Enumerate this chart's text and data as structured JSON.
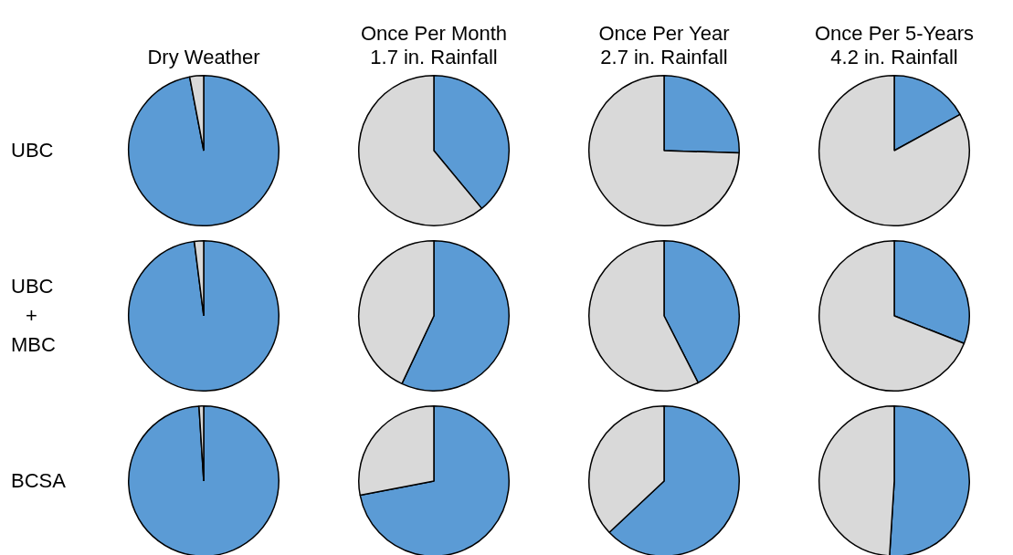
{
  "chart_data": [
    {
      "type": "pie",
      "title": "Dry Weather",
      "ylabel": "UBC",
      "categories": [
        null,
        null
      ],
      "values": [
        97,
        3
      ],
      "colors": [
        "#5b9bd5",
        "#d9d9d9"
      ]
    },
    {
      "type": "pie",
      "title": "Once Per Month\n1.7 in. Rainfall",
      "categories": [
        null,
        null
      ],
      "values": [
        39,
        61
      ],
      "colors": [
        "#5b9bd5",
        "#d9d9d9"
      ]
    },
    {
      "type": "pie",
      "title": "Once Per Year\n2.7 in. Rainfall",
      "categories": [
        null,
        null
      ],
      "values": [
        25.5,
        74.5
      ],
      "colors": [
        "#5b9bd5",
        "#d9d9d9"
      ]
    },
    {
      "type": "pie",
      "title": "Once Per 5-Years\n4.2 in. Rainfall",
      "categories": [
        null,
        null
      ],
      "values": [
        17,
        83
      ],
      "colors": [
        "#5b9bd5",
        "#d9d9d9"
      ]
    },
    {
      "type": "pie",
      "ylabel": "UBC\n+\nMBC",
      "categories": [
        null,
        null
      ],
      "values": [
        98,
        2
      ],
      "colors": [
        "#5b9bd5",
        "#d9d9d9"
      ]
    },
    {
      "type": "pie",
      "categories": [
        null,
        null
      ],
      "values": [
        57,
        43
      ],
      "colors": [
        "#5b9bd5",
        "#d9d9d9"
      ]
    },
    {
      "type": "pie",
      "categories": [
        null,
        null
      ],
      "values": [
        42.5,
        57.5
      ],
      "colors": [
        "#5b9bd5",
        "#d9d9d9"
      ]
    },
    {
      "type": "pie",
      "categories": [
        null,
        null
      ],
      "values": [
        31,
        69
      ],
      "colors": [
        "#5b9bd5",
        "#d9d9d9"
      ]
    },
    {
      "type": "pie",
      "ylabel": "BCSA",
      "categories": [
        null,
        null
      ],
      "values": [
        99,
        1
      ],
      "colors": [
        "#5b9bd5",
        "#d9d9d9"
      ]
    },
    {
      "type": "pie",
      "categories": [
        null,
        null
      ],
      "values": [
        72,
        28
      ],
      "colors": [
        "#5b9bd5",
        "#d9d9d9"
      ]
    },
    {
      "type": "pie",
      "categories": [
        null,
        null
      ],
      "values": [
        63,
        37
      ],
      "colors": [
        "#5b9bd5",
        "#d9d9d9"
      ]
    },
    {
      "type": "pie",
      "categories": [
        null,
        null
      ],
      "values": [
        51,
        49
      ],
      "colors": [
        "#5b9bd5",
        "#d9d9d9"
      ]
    }
  ]
}
